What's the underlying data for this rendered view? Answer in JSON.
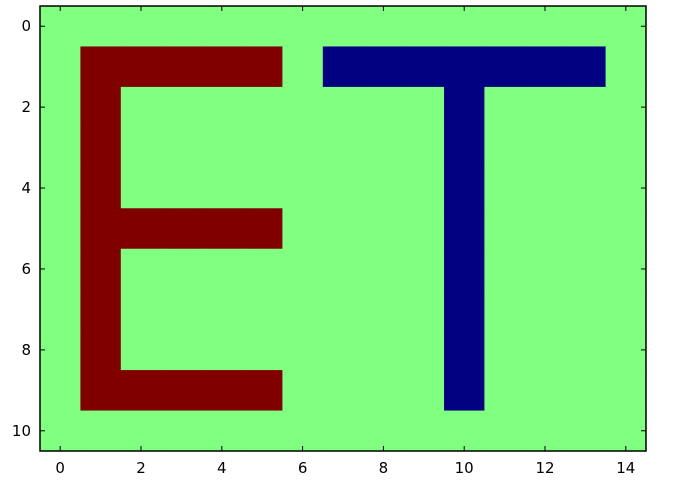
{
  "chart_data": {
    "type": "heatmap",
    "title": "",
    "xlabel": "",
    "ylabel": "",
    "xlim": [
      -0.5,
      14.5
    ],
    "ylim": [
      10.5,
      -0.5
    ],
    "y_inverted": true,
    "grid": false,
    "colors": {
      "background": "#80ff80",
      "E": "#800000",
      "T": "#000080"
    },
    "x_ticks": [
      {
        "value": 0,
        "label": "0"
      },
      {
        "value": 2,
        "label": "2"
      },
      {
        "value": 4,
        "label": "4"
      },
      {
        "value": 6,
        "label": "6"
      },
      {
        "value": 8,
        "label": "8"
      },
      {
        "value": 10,
        "label": "10"
      },
      {
        "value": 12,
        "label": "12"
      },
      {
        "value": 14,
        "label": "14"
      }
    ],
    "y_ticks": [
      {
        "value": 0,
        "label": "0"
      },
      {
        "value": 2,
        "label": "2"
      },
      {
        "value": 4,
        "label": "4"
      },
      {
        "value": 6,
        "label": "6"
      },
      {
        "value": 8,
        "label": "8"
      },
      {
        "value": 10,
        "label": "10"
      }
    ],
    "legend": [
      {
        "value": 0,
        "color_key": "T"
      },
      {
        "value": 0.5,
        "color_key": "background"
      },
      {
        "value": 1,
        "color_key": "E"
      }
    ],
    "matrix": [
      [
        0.5,
        0.5,
        0.5,
        0.5,
        0.5,
        0.5,
        0.5,
        0.5,
        0.5,
        0.5,
        0.5,
        0.5,
        0.5,
        0.5,
        0.5
      ],
      [
        0.5,
        1,
        1,
        1,
        1,
        1,
        0.5,
        0,
        0,
        0,
        0,
        0,
        0,
        0,
        0.5
      ],
      [
        0.5,
        1,
        0.5,
        0.5,
        0.5,
        0.5,
        0.5,
        0.5,
        0.5,
        0.5,
        0,
        0.5,
        0.5,
        0.5,
        0.5
      ],
      [
        0.5,
        1,
        0.5,
        0.5,
        0.5,
        0.5,
        0.5,
        0.5,
        0.5,
        0.5,
        0,
        0.5,
        0.5,
        0.5,
        0.5
      ],
      [
        0.5,
        1,
        0.5,
        0.5,
        0.5,
        0.5,
        0.5,
        0.5,
        0.5,
        0.5,
        0,
        0.5,
        0.5,
        0.5,
        0.5
      ],
      [
        0.5,
        1,
        1,
        1,
        1,
        1,
        0.5,
        0.5,
        0.5,
        0.5,
        0,
        0.5,
        0.5,
        0.5,
        0.5
      ],
      [
        0.5,
        1,
        0.5,
        0.5,
        0.5,
        0.5,
        0.5,
        0.5,
        0.5,
        0.5,
        0,
        0.5,
        0.5,
        0.5,
        0.5
      ],
      [
        0.5,
        1,
        0.5,
        0.5,
        0.5,
        0.5,
        0.5,
        0.5,
        0.5,
        0.5,
        0,
        0.5,
        0.5,
        0.5,
        0.5
      ],
      [
        0.5,
        1,
        0.5,
        0.5,
        0.5,
        0.5,
        0.5,
        0.5,
        0.5,
        0.5,
        0,
        0.5,
        0.5,
        0.5,
        0.5
      ],
      [
        0.5,
        1,
        1,
        1,
        1,
        1,
        0.5,
        0.5,
        0.5,
        0.5,
        0,
        0.5,
        0.5,
        0.5,
        0.5
      ],
      [
        0.5,
        0.5,
        0.5,
        0.5,
        0.5,
        0.5,
        0.5,
        0.5,
        0.5,
        0.5,
        0.5,
        0.5,
        0.5,
        0.5,
        0.5
      ]
    ]
  }
}
